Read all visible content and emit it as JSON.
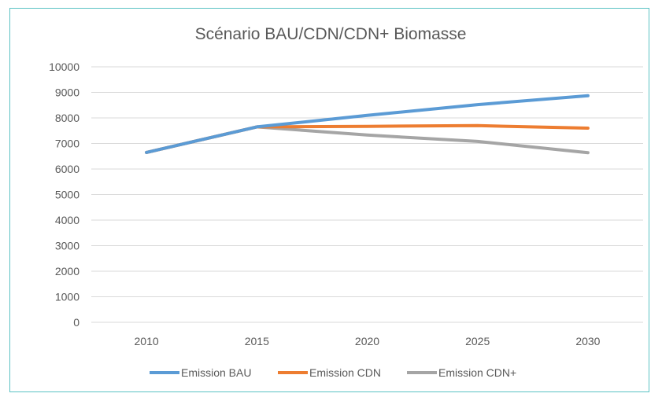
{
  "chart_data": {
    "type": "line",
    "title": "Scénario BAU/CDN/CDN+ Biomasse",
    "xlabel": "",
    "ylabel": "",
    "categories": [
      "2010",
      "2015",
      "2020",
      "2025",
      "2030"
    ],
    "ylim": [
      0,
      10000
    ],
    "yticks": [
      "0",
      "1000",
      "2000",
      "3000",
      "4000",
      "5000",
      "6000",
      "7000",
      "8000",
      "9000",
      "10000"
    ],
    "grid": true,
    "legend_position": "bottom",
    "series": [
      {
        "name": "Emission BAU",
        "color": "#5b9bd5",
        "values": [
          6650,
          7650,
          8100,
          8520,
          8870
        ]
      },
      {
        "name": "Emission CDN",
        "color": "#ed7d31",
        "values": [
          6650,
          7650,
          7670,
          7700,
          7600
        ]
      },
      {
        "name": "Emission CDN+",
        "color": "#a5a5a5",
        "values": [
          6650,
          7650,
          7330,
          7080,
          6640
        ]
      }
    ]
  }
}
